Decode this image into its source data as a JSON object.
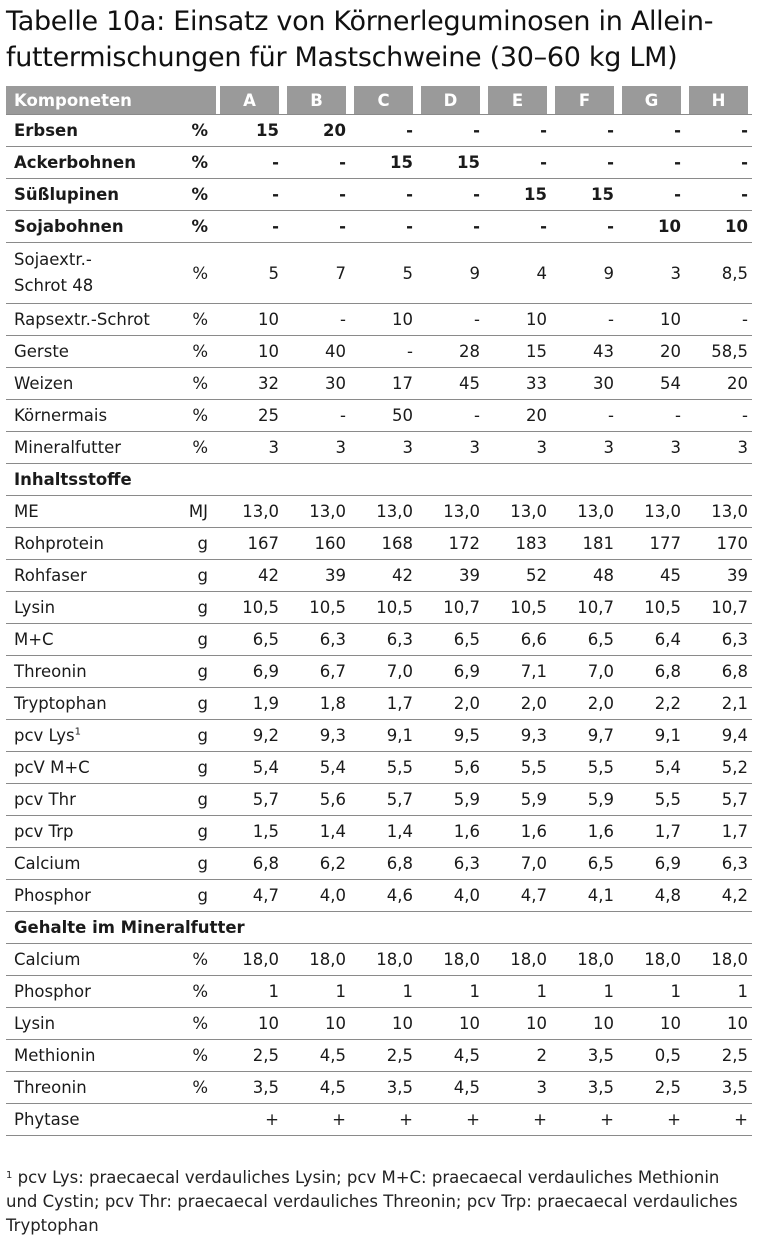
{
  "title": {
    "line1": "Tabelle 10a: Einsatz von Körnerleguminosen in Allein-",
    "line2": "futtermischungen für Mastschweine (30–60 kg LM)"
  },
  "header": {
    "label": "Komponeten",
    "columns": [
      "A",
      "B",
      "C",
      "D",
      "E",
      "F",
      "G",
      "H"
    ]
  },
  "rows": [
    {
      "label": "Erbsen",
      "unit": "%",
      "values": [
        "15",
        "20",
        "-",
        "-",
        "-",
        "-",
        "-",
        "-"
      ],
      "bold": true
    },
    {
      "label": "Ackerbohnen",
      "unit": "%",
      "values": [
        "-",
        "-",
        "15",
        "15",
        "-",
        "-",
        "-",
        "-"
      ],
      "bold": true
    },
    {
      "label": "Süßlupinen",
      "unit": "%",
      "values": [
        "-",
        "-",
        "-",
        "-",
        "15",
        "15",
        "-",
        "-"
      ],
      "bold": true
    },
    {
      "label": "Sojabohnen",
      "unit": "%",
      "values": [
        "-",
        "-",
        "-",
        "-",
        "-",
        "-",
        "10",
        "10"
      ],
      "bold": true
    },
    {
      "label": "Sojaextr.-",
      "label2": "Schrot 48",
      "unit": "%",
      "values": [
        "5",
        "7",
        "5",
        "9",
        "4",
        "9",
        "3",
        "8,5"
      ],
      "tall": true
    },
    {
      "label": "Rapsextr.-Schrot",
      "unit": "%",
      "values": [
        "10",
        "-",
        "10",
        "-",
        "10",
        "-",
        "10",
        "-"
      ]
    },
    {
      "label": "Gerste",
      "unit": "%",
      "values": [
        "10",
        "40",
        "-",
        "28",
        "15",
        "43",
        "20",
        "58,5"
      ]
    },
    {
      "label": "Weizen",
      "unit": "%",
      "values": [
        "32",
        "30",
        "17",
        "45",
        "33",
        "30",
        "54",
        "20"
      ]
    },
    {
      "label": "Körnermais",
      "unit": "%",
      "values": [
        "25",
        "-",
        "50",
        "-",
        "20",
        "-",
        "-",
        "-"
      ]
    },
    {
      "label": "Mineralfutter",
      "unit": "%",
      "values": [
        "3",
        "3",
        "3",
        "3",
        "3",
        "3",
        "3",
        "3"
      ]
    },
    {
      "section": "Inhaltsstoffe"
    },
    {
      "label": "ME",
      "unit": "MJ",
      "values": [
        "13,0",
        "13,0",
        "13,0",
        "13,0",
        "13,0",
        "13,0",
        "13,0",
        "13,0"
      ]
    },
    {
      "label": "Rohprotein",
      "unit": "g",
      "values": [
        "167",
        "160",
        "168",
        "172",
        "183",
        "181",
        "177",
        "170"
      ]
    },
    {
      "label": "Rohfaser",
      "unit": "g",
      "values": [
        "42",
        "39",
        "42",
        "39",
        "52",
        "48",
        "45",
        "39"
      ]
    },
    {
      "label": "Lysin",
      "unit": "g",
      "values": [
        "10,5",
        "10,5",
        "10,5",
        "10,7",
        "10,5",
        "10,7",
        "10,5",
        "10,7"
      ]
    },
    {
      "label": "M+C",
      "unit": "g",
      "values": [
        "6,5",
        "6,3",
        "6,3",
        "6,5",
        "6,6",
        "6,5",
        "6,4",
        "6,3"
      ]
    },
    {
      "label": "Threonin",
      "unit": "g",
      "values": [
        "6,9",
        "6,7",
        "7,0",
        "6,9",
        "7,1",
        "7,0",
        "6,8",
        "6,8"
      ]
    },
    {
      "label": "Tryptophan",
      "unit": "g",
      "values": [
        "1,9",
        "1,8",
        "1,7",
        "2,0",
        "2,0",
        "2,0",
        "2,2",
        "2,1"
      ]
    },
    {
      "label": "pcv Lys",
      "sup": "1",
      "unit": "g",
      "values": [
        "9,2",
        "9,3",
        "9,1",
        "9,5",
        "9,3",
        "9,7",
        "9,1",
        "9,4"
      ]
    },
    {
      "label": "pcV M+C",
      "unit": "g",
      "values": [
        "5,4",
        "5,4",
        "5,5",
        "5,6",
        "5,5",
        "5,5",
        "5,4",
        "5,2"
      ]
    },
    {
      "label": "pcv Thr",
      "unit": "g",
      "values": [
        "5,7",
        "5,6",
        "5,7",
        "5,9",
        "5,9",
        "5,9",
        "5,5",
        "5,7"
      ]
    },
    {
      "label": "pcv Trp",
      "unit": "g",
      "values": [
        "1,5",
        "1,4",
        "1,4",
        "1,6",
        "1,6",
        "1,6",
        "1,7",
        "1,7"
      ]
    },
    {
      "label": "Calcium",
      "unit": "g",
      "values": [
        "6,8",
        "6,2",
        "6,8",
        "6,3",
        "7,0",
        "6,5",
        "6,9",
        "6,3"
      ]
    },
    {
      "label": "Phosphor",
      "unit": "g",
      "values": [
        "4,7",
        "4,0",
        "4,6",
        "4,0",
        "4,7",
        "4,1",
        "4,8",
        "4,2"
      ]
    },
    {
      "section": "Gehalte im Mineralfutter"
    },
    {
      "label": "Calcium",
      "unit": "%",
      "values": [
        "18,0",
        "18,0",
        "18,0",
        "18,0",
        "18,0",
        "18,0",
        "18,0",
        "18,0"
      ]
    },
    {
      "label": "Phosphor",
      "unit": "%",
      "values": [
        "1",
        "1",
        "1",
        "1",
        "1",
        "1",
        "1",
        "1"
      ]
    },
    {
      "label": "Lysin",
      "unit": "%",
      "values": [
        "10",
        "10",
        "10",
        "10",
        "10",
        "10",
        "10",
        "10"
      ]
    },
    {
      "label": "Methionin",
      "unit": "%",
      "values": [
        "2,5",
        "4,5",
        "2,5",
        "4,5",
        "2",
        "3,5",
        "0,5",
        "2,5"
      ]
    },
    {
      "label": "Threonin",
      "unit": "%",
      "values": [
        "3,5",
        "4,5",
        "3,5",
        "4,5",
        "3",
        "3,5",
        "2,5",
        "3,5"
      ]
    },
    {
      "label": "Phytase",
      "unit": "",
      "values": [
        "+",
        "+",
        "+",
        "+",
        "+",
        "+",
        "+",
        "+"
      ]
    }
  ],
  "footnote": {
    "marker": "1",
    "text": "pcv Lys: praecaecal verdauliches Lysin; pcv M+C: praecaecal verdauliches Methionin und Cystin; pcv Thr: praecaecal verdauliches Threonin; pcv Trp: praecaecal verdauliches Tryptophan"
  }
}
